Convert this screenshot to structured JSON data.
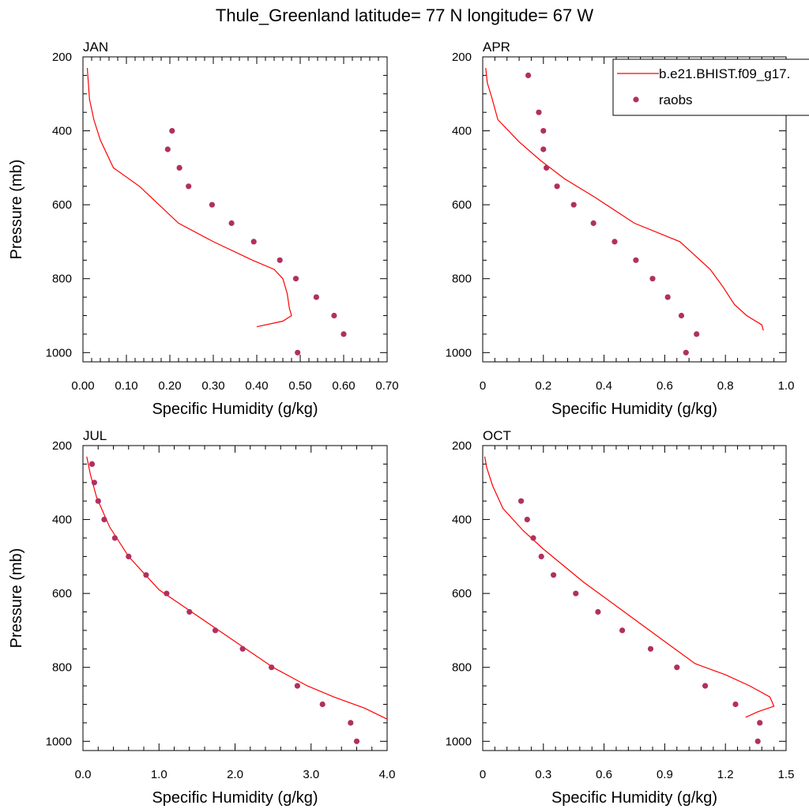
{
  "title": "Thule_Greenland  latitude= 77 N longitude= 67 W",
  "colors": {
    "model": "#ff0000",
    "obs": "#b03060",
    "axis": "#000000"
  },
  "legend": {
    "model_label": "b.e21.BHIST.f09_g17.",
    "obs_label": "raobs",
    "placement": "top-right"
  },
  "chart_data": [
    {
      "type": "scatter",
      "panel": "JAN",
      "xlabel": "Specific Humidity (g/kg)",
      "ylabel": "Pressure (mb)",
      "xlim": [
        0,
        0.7
      ],
      "ylim": [
        200,
        1025
      ],
      "y_reversed": true,
      "xticks": [
        "0.00",
        "0.10",
        "0.20",
        "0.30",
        "0.40",
        "0.50",
        "0.60",
        "0.70"
      ],
      "yticks": [
        "200",
        "400",
        "600",
        "800",
        "1000"
      ],
      "series": [
        {
          "name": "b.e21.BHIST.f09_g17.",
          "kind": "line",
          "x": [
            0.4,
            0.46,
            0.48,
            0.475,
            0.47,
            0.46,
            0.44,
            0.39,
            0.3,
            0.22,
            0.13,
            0.07,
            0.04,
            0.025,
            0.015,
            0.01
          ],
          "y": [
            930,
            915,
            900,
            880,
            840,
            800,
            775,
            750,
            700,
            650,
            550,
            500,
            425,
            370,
            315,
            230
          ]
        },
        {
          "name": "raobs",
          "kind": "points",
          "x": [
            0.205,
            0.195,
            0.222,
            0.243,
            0.297,
            0.342,
            0.393,
            0.453,
            0.49,
            0.537,
            0.578,
            0.6,
            0.494
          ],
          "y": [
            400,
            450,
            500,
            550,
            600,
            650,
            700,
            750,
            800,
            850,
            900,
            950,
            1000
          ]
        }
      ]
    },
    {
      "type": "scatter",
      "panel": "APR",
      "xlabel": "Specific Humidity (g/kg)",
      "ylabel": "",
      "xlim": [
        0,
        1.0
      ],
      "ylim": [
        200,
        1025
      ],
      "y_reversed": true,
      "xticks": [
        "0",
        "0.2",
        "0.4",
        "0.6",
        "0.8",
        "1.0"
      ],
      "yticks": [
        "200",
        "400",
        "600",
        "800",
        "1000"
      ],
      "series": [
        {
          "name": "b.e21.BHIST.f09_g17.",
          "kind": "line",
          "x": [
            0.925,
            0.92,
            0.87,
            0.83,
            0.79,
            0.75,
            0.65,
            0.5,
            0.37,
            0.27,
            0.19,
            0.12,
            0.05,
            0.03,
            0.015,
            0.01
          ],
          "y": [
            940,
            925,
            900,
            870,
            820,
            775,
            700,
            650,
            580,
            530,
            480,
            430,
            370,
            310,
            270,
            230
          ]
        },
        {
          "name": "raobs",
          "kind": "points",
          "x": [
            0.15,
            0.185,
            0.2,
            0.2,
            0.21,
            0.245,
            0.3,
            0.365,
            0.435,
            0.505,
            0.56,
            0.61,
            0.655,
            0.705,
            0.67
          ],
          "y": [
            250,
            350,
            400,
            450,
            500,
            550,
            600,
            650,
            700,
            750,
            800,
            850,
            900,
            950,
            1000
          ]
        }
      ]
    },
    {
      "type": "scatter",
      "panel": "JUL",
      "xlabel": "Specific Humidity (g/kg)",
      "ylabel": "Pressure (mb)",
      "xlim": [
        0,
        4.0
      ],
      "ylim": [
        200,
        1025
      ],
      "y_reversed": true,
      "xticks": [
        "0.0",
        "1.0",
        "2.0",
        "3.0",
        "4.0"
      ],
      "yticks": [
        "200",
        "400",
        "600",
        "800",
        "1000"
      ],
      "series": [
        {
          "name": "b.e21.BHIST.f09_g17.",
          "kind": "line",
          "x": [
            4.0,
            3.7,
            3.3,
            2.95,
            2.5,
            2.0,
            1.5,
            1.0,
            0.6,
            0.35,
            0.18,
            0.1,
            0.05
          ],
          "y": [
            940,
            910,
            880,
            850,
            800,
            730,
            660,
            590,
            500,
            420,
            340,
            280,
            230
          ]
        },
        {
          "name": "raobs",
          "kind": "points",
          "x": [
            0.12,
            0.15,
            0.2,
            0.28,
            0.42,
            0.6,
            0.83,
            1.1,
            1.4,
            1.74,
            2.1,
            2.48,
            2.82,
            3.15,
            3.52,
            3.6
          ],
          "y": [
            250,
            300,
            350,
            400,
            450,
            500,
            550,
            600,
            650,
            700,
            750,
            800,
            850,
            900,
            950,
            1000
          ]
        }
      ]
    },
    {
      "type": "scatter",
      "panel": "OCT",
      "xlabel": "Specific Humidity (g/kg)",
      "ylabel": "",
      "xlim": [
        0,
        1.5
      ],
      "ylim": [
        200,
        1025
      ],
      "y_reversed": true,
      "xticks": [
        "0",
        "0.3",
        "0.6",
        "0.9",
        "1.2",
        "1.5"
      ],
      "yticks": [
        "200",
        "400",
        "600",
        "800",
        "1000"
      ],
      "series": [
        {
          "name": "b.e21.BHIST.f09_g17.",
          "kind": "line",
          "x": [
            1.3,
            1.36,
            1.44,
            1.42,
            1.32,
            1.2,
            1.05,
            0.9,
            0.7,
            0.5,
            0.3,
            0.2,
            0.1,
            0.05,
            0.02,
            0.01
          ],
          "y": [
            935,
            920,
            905,
            880,
            850,
            820,
            790,
            730,
            650,
            570,
            480,
            430,
            370,
            310,
            260,
            230
          ]
        },
        {
          "name": "raobs",
          "kind": "points",
          "x": [
            0.19,
            0.22,
            0.25,
            0.29,
            0.35,
            0.46,
            0.57,
            0.69,
            0.83,
            0.96,
            1.1,
            1.25,
            1.37,
            1.36
          ],
          "y": [
            350,
            400,
            450,
            500,
            550,
            600,
            650,
            700,
            750,
            800,
            850,
            900,
            950,
            1000
          ]
        }
      ]
    }
  ]
}
